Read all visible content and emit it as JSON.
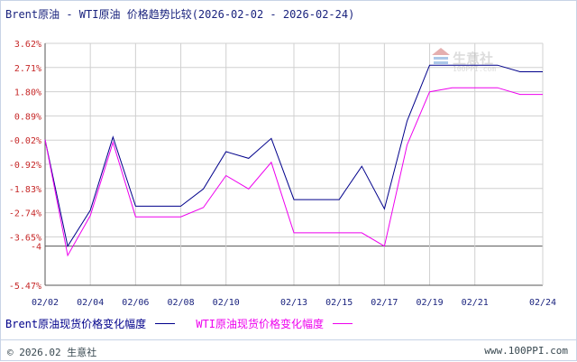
{
  "title": "Brent原油 - WTI原油 价格趋势比较(2026-02-02 - 2026-02-24)",
  "footer": {
    "copyright": "© 2026.02 生意社",
    "site": "www.100PPI.com"
  },
  "watermark": {
    "text": "生意社",
    "sub": "100PPI.com"
  },
  "colors": {
    "brent": "#00008b",
    "wti": "#ee00ee",
    "grid": "#d0d0d0",
    "ytick": "#c62828",
    "xtick": "#1a237e"
  },
  "chart_data": {
    "type": "line",
    "title": "Brent原油 - WTI原油 价格趋势比较(2026-02-02 - 2026-02-24)",
    "xlabel": "",
    "ylabel": "",
    "y_ticks": [
      "3.62%",
      "2.71%",
      "1.80%",
      "0.89%",
      "-0.02%",
      "-0.92%",
      "-1.83%",
      "-2.74%",
      "-3.65%",
      "-4",
      "-5.47%"
    ],
    "x_ticks": [
      "02/02",
      "02/04",
      "02/06",
      "02/08",
      "02/10",
      "02/13",
      "02/15",
      "02/17",
      "02/19",
      "02/21",
      "02/24"
    ],
    "ylim": [
      -5.47,
      3.62
    ],
    "grid": true,
    "legend_position": "bottom",
    "series": [
      {
        "name": "Brent原油现货价格变化幅度",
        "color": "#00008b",
        "x": [
          "02/02",
          "02/03",
          "02/04",
          "02/05",
          "02/06",
          "02/07",
          "02/08",
          "02/09",
          "02/10",
          "02/11",
          "02/12",
          "02/13",
          "02/14",
          "02/15",
          "02/16",
          "02/17",
          "02/18",
          "02/19",
          "02/20",
          "02/21",
          "02/22",
          "02/23",
          "02/24"
        ],
        "values": [
          0.0,
          -4.0,
          -2.65,
          0.1,
          -2.5,
          -2.5,
          -2.5,
          -1.85,
          -0.45,
          -0.7,
          0.05,
          -2.25,
          -2.25,
          -2.25,
          -1.0,
          -2.6,
          0.7,
          2.8,
          2.8,
          2.8,
          2.8,
          2.55,
          2.55
        ]
      },
      {
        "name": "WTI原油现货价格变化幅度",
        "color": "#ee00ee",
        "x": [
          "02/02",
          "02/03",
          "02/04",
          "02/05",
          "02/06",
          "02/07",
          "02/08",
          "02/09",
          "02/10",
          "02/11",
          "02/12",
          "02/13",
          "02/14",
          "02/15",
          "02/16",
          "02/17",
          "02/18",
          "02/19",
          "02/20",
          "02/21",
          "02/22",
          "02/23",
          "02/24"
        ],
        "values": [
          0.0,
          -4.35,
          -2.85,
          -0.1,
          -2.9,
          -2.9,
          -2.9,
          -2.55,
          -1.35,
          -1.85,
          -0.85,
          -3.5,
          -3.5,
          -3.5,
          -3.5,
          -4.0,
          -0.2,
          1.8,
          1.95,
          1.95,
          1.95,
          1.7,
          1.7
        ]
      }
    ]
  }
}
